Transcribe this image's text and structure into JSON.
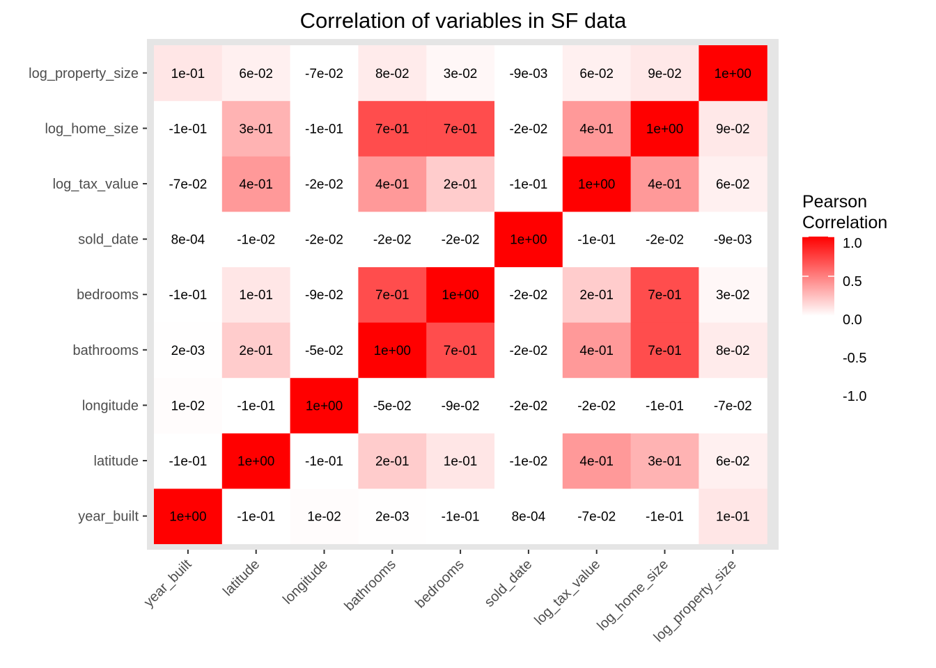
{
  "chart_data": {
    "type": "heatmap",
    "title": "Correlation of variables in SF data",
    "xlabel": "",
    "ylabel": "",
    "x_categories": [
      "year_built",
      "latitude",
      "longitude",
      "bathrooms",
      "bedrooms",
      "sold_date",
      "log_tax_value",
      "log_home_size",
      "log_property_size"
    ],
    "y_categories": [
      "year_built",
      "latitude",
      "longitude",
      "bathrooms",
      "bedrooms",
      "sold_date",
      "log_tax_value",
      "log_home_size",
      "log_property_size"
    ],
    "values": [
      [
        1.0,
        -0.1,
        0.01,
        0.002,
        -0.1,
        0.0008,
        -0.07,
        -0.1,
        0.1
      ],
      [
        -0.1,
        1.0,
        -0.1,
        0.2,
        0.1,
        -0.01,
        0.4,
        0.3,
        0.06
      ],
      [
        0.01,
        -0.1,
        1.0,
        -0.05,
        -0.09,
        -0.02,
        -0.02,
        -0.1,
        -0.07
      ],
      [
        0.002,
        0.2,
        -0.05,
        1.0,
        0.7,
        -0.02,
        0.4,
        0.7,
        0.08
      ],
      [
        -0.1,
        0.1,
        -0.09,
        0.7,
        1.0,
        -0.02,
        0.2,
        0.7,
        0.03
      ],
      [
        0.0008,
        -0.01,
        -0.02,
        -0.02,
        -0.02,
        1.0,
        -0.1,
        -0.02,
        -0.009
      ],
      [
        -0.07,
        0.4,
        -0.02,
        0.4,
        0.2,
        -0.1,
        1.0,
        0.4,
        0.06
      ],
      [
        -0.1,
        0.3,
        -0.1,
        0.7,
        0.7,
        -0.02,
        0.4,
        1.0,
        0.09
      ],
      [
        0.1,
        0.06,
        -0.07,
        0.08,
        0.03,
        -0.009,
        0.06,
        0.09,
        1.0
      ]
    ],
    "labels": [
      [
        "1e+00",
        "-1e-01",
        "1e-02",
        "2e-03",
        "-1e-01",
        "8e-04",
        "-7e-02",
        "-1e-01",
        "1e-01"
      ],
      [
        "-1e-01",
        "1e+00",
        "-1e-01",
        "2e-01",
        "1e-01",
        "-1e-02",
        "4e-01",
        "3e-01",
        "6e-02"
      ],
      [
        "1e-02",
        "-1e-01",
        "1e+00",
        "-5e-02",
        "-9e-02",
        "-2e-02",
        "-2e-02",
        "-1e-01",
        "-7e-02"
      ],
      [
        "2e-03",
        "2e-01",
        "-5e-02",
        "1e+00",
        "7e-01",
        "-2e-02",
        "4e-01",
        "7e-01",
        "8e-02"
      ],
      [
        "-1e-01",
        "1e-01",
        "-9e-02",
        "7e-01",
        "1e+00",
        "-2e-02",
        "2e-01",
        "7e-01",
        "3e-02"
      ],
      [
        "8e-04",
        "-1e-02",
        "-2e-02",
        "-2e-02",
        "-2e-02",
        "1e+00",
        "-1e-01",
        "-2e-02",
        "-9e-03"
      ],
      [
        "-7e-02",
        "4e-01",
        "-2e-02",
        "4e-01",
        "2e-01",
        "-1e-01",
        "1e+00",
        "4e-01",
        "6e-02"
      ],
      [
        "-1e-01",
        "3e-01",
        "-1e-01",
        "7e-01",
        "7e-01",
        "-2e-02",
        "4e-01",
        "1e+00",
        "9e-02"
      ],
      [
        "1e-01",
        "6e-02",
        "-7e-02",
        "8e-02",
        "3e-02",
        "-9e-03",
        "6e-02",
        "9e-02",
        "1e+00"
      ]
    ],
    "legend": {
      "title_lines": [
        "Pearson",
        "Correlation"
      ],
      "ticks": [
        1.0,
        0.5,
        0.0,
        -0.5,
        -1.0
      ],
      "tick_labels": [
        "1.0",
        "0.5",
        "0.0",
        "-0.5",
        "-1.0"
      ],
      "placement": "right"
    },
    "color_scale": {
      "low": "#ffffff",
      "high": "#ff0000",
      "limits": [
        0,
        1
      ]
    },
    "panel_background": "#e5e5e5",
    "grid": false
  }
}
